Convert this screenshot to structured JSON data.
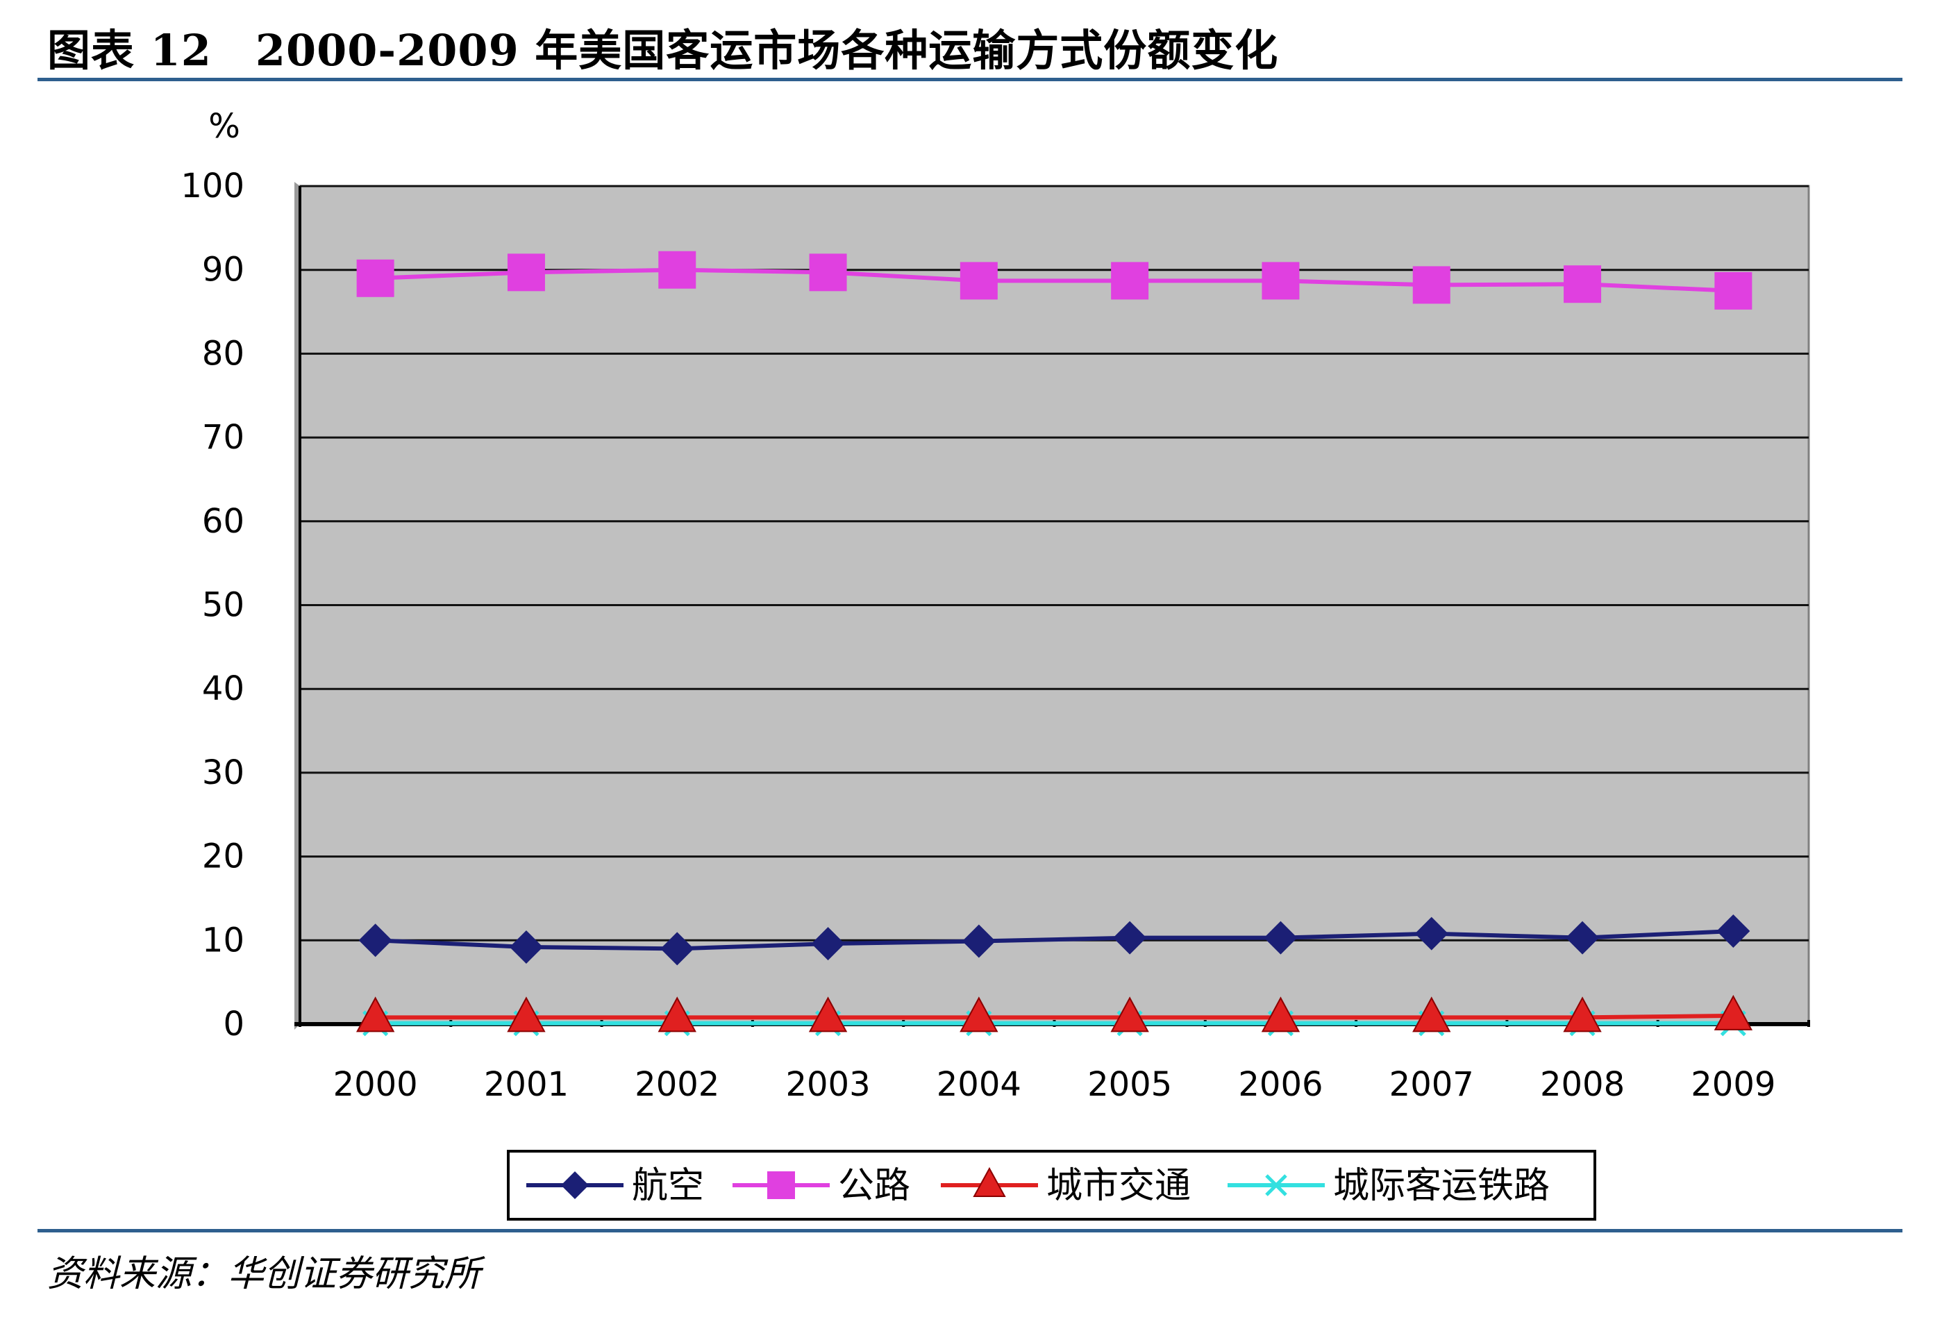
{
  "figure": {
    "title": "图表 12　2000-2009 年美国客运市场各种运输方式份额变化",
    "source": "资料来源：华创证券研究所"
  },
  "chart_data": {
    "type": "line",
    "title": "",
    "ylabel": "%",
    "xlabel": "",
    "ylim": [
      0,
      100
    ],
    "yticks": [
      0,
      10,
      20,
      30,
      40,
      50,
      60,
      70,
      80,
      90,
      100
    ],
    "categories": [
      "2000",
      "2001",
      "2002",
      "2003",
      "2004",
      "2005",
      "2006",
      "2007",
      "2008",
      "2009"
    ],
    "grid": true,
    "legend_position": "bottom",
    "plot_background": "#c0c0c0",
    "series": [
      {
        "name": "航空",
        "marker": "diamond",
        "color": "#1b1f75",
        "values": [
          10.0,
          9.2,
          9.0,
          9.6,
          9.9,
          10.3,
          10.3,
          10.8,
          10.3,
          11.1
        ]
      },
      {
        "name": "公路",
        "marker": "square",
        "color": "#e040e0",
        "values": [
          89.0,
          89.7,
          90.0,
          89.7,
          88.7,
          88.7,
          88.7,
          88.2,
          88.3,
          87.5
        ]
      },
      {
        "name": "城市交通",
        "marker": "triangle",
        "color": "#e02020",
        "values": [
          0.8,
          0.8,
          0.8,
          0.8,
          0.8,
          0.8,
          0.8,
          0.8,
          0.8,
          1.0
        ]
      },
      {
        "name": "城际客运铁路",
        "marker": "x",
        "color": "#33e0e0",
        "values": [
          0.1,
          0.1,
          0.1,
          0.1,
          0.1,
          0.1,
          0.1,
          0.1,
          0.1,
          0.1
        ]
      }
    ]
  }
}
